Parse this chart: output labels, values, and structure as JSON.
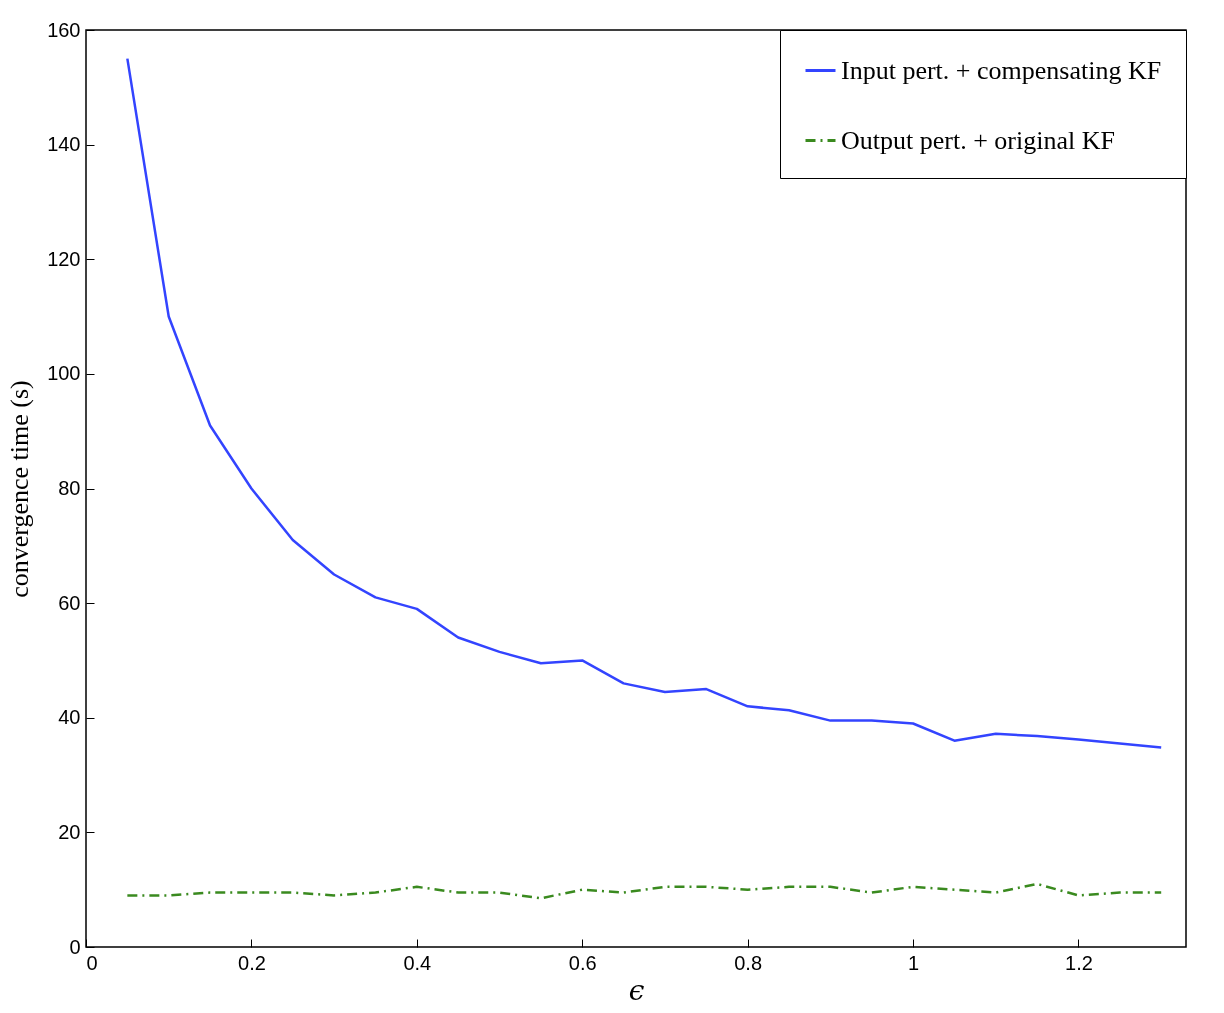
{
  "chart_data": {
    "type": "line",
    "xlabel": "ϵ",
    "ylabel": "convergence time (s)",
    "x": [
      0.05,
      0.1,
      0.15,
      0.2,
      0.25,
      0.3,
      0.35,
      0.4,
      0.45,
      0.5,
      0.55,
      0.6,
      0.65,
      0.7,
      0.75,
      0.8,
      0.85,
      0.9,
      0.95,
      1.0,
      1.05,
      1.1,
      1.15,
      1.2,
      1.25,
      1.3
    ],
    "series": [
      {
        "name": "Input pert. + compensating KF",
        "color": "#3344ff",
        "line_style": "solid",
        "values": [
          155,
          110,
          91,
          80,
          71,
          65,
          61,
          59,
          54,
          51.5,
          49.5,
          50,
          46,
          44.5,
          45,
          42,
          41.3,
          39.5,
          39.5,
          39,
          36,
          37.2,
          36.8,
          36.2,
          35.5,
          34.8
        ]
      },
      {
        "name": "Output pert. + original KF",
        "color": "#3a8a1f",
        "line_style": "dashed",
        "values": [
          9,
          9,
          9.5,
          9.5,
          9.5,
          9,
          9.5,
          10.5,
          9.5,
          9.5,
          8.5,
          10,
          9.5,
          10.5,
          10.5,
          10,
          10.5,
          10.5,
          9.5,
          10.5,
          10,
          9.5,
          11,
          9,
          9.5,
          9.5
        ]
      }
    ],
    "xlim": [
      0,
      1.33
    ],
    "xticks": [
      0,
      0.2,
      0.4,
      0.6,
      0.8,
      1,
      1.2
    ],
    "ylim": [
      0,
      160
    ],
    "yticks": [
      0,
      20,
      40,
      60,
      80,
      100,
      120,
      140,
      160
    ],
    "grid": false,
    "legend": "top right"
  }
}
